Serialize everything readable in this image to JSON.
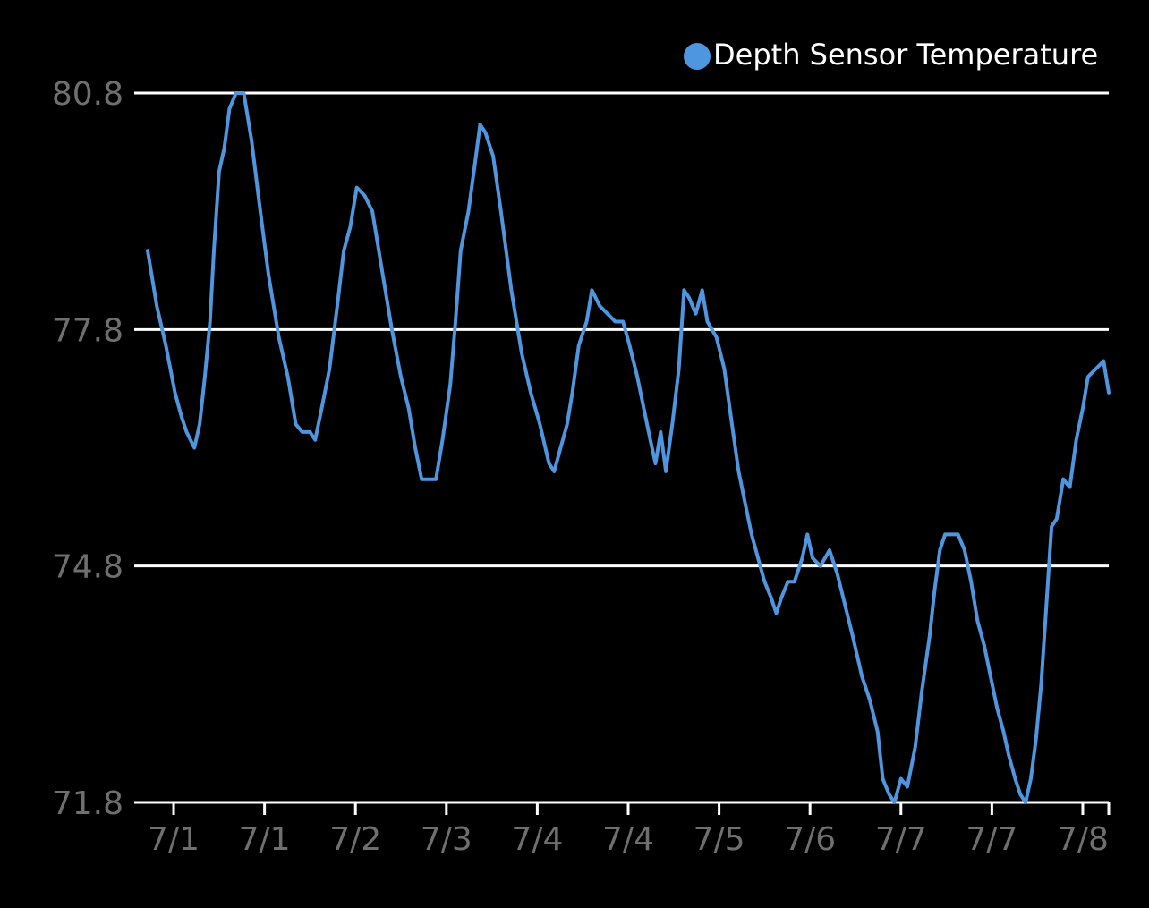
{
  "chart_data": {
    "type": "line",
    "legend": {
      "position": "top-right"
    },
    "colors": {
      "background": "#000000",
      "series": "#4f96e0",
      "grid": "#ffffff",
      "tick_text": "#6f6f6f",
      "legend_text": "#ffffff"
    },
    "grid": true,
    "ylim": [
      71.8,
      80.8
    ],
    "yticks": [
      {
        "value": 80.8,
        "label": "80.8"
      },
      {
        "value": 77.8,
        "label": "77.8"
      },
      {
        "value": 74.8,
        "label": "74.8"
      },
      {
        "value": 71.8,
        "label": "71.8"
      }
    ],
    "x_unit": "days since 7/1 start",
    "xlim": [
      0,
      7.4
    ],
    "xticks": [
      {
        "value": 0.2,
        "label": "7/1"
      },
      {
        "value": 0.9,
        "label": "7/1"
      },
      {
        "value": 1.6,
        "label": "7/2"
      },
      {
        "value": 2.3,
        "label": "7/3"
      },
      {
        "value": 3.0,
        "label": "7/4"
      },
      {
        "value": 3.7,
        "label": "7/4"
      },
      {
        "value": 4.4,
        "label": "7/5"
      },
      {
        "value": 5.1,
        "label": "7/6"
      },
      {
        "value": 5.8,
        "label": "7/7"
      },
      {
        "value": 6.5,
        "label": "7/7"
      },
      {
        "value": 7.2,
        "label": "7/8"
      }
    ],
    "series": [
      {
        "name": "Depth Sensor Temperature",
        "points": [
          [
            0.0,
            78.8
          ],
          [
            0.07,
            78.1
          ],
          [
            0.14,
            77.6
          ],
          [
            0.21,
            77.0
          ],
          [
            0.26,
            76.7
          ],
          [
            0.3,
            76.5
          ],
          [
            0.36,
            76.3
          ],
          [
            0.4,
            76.6
          ],
          [
            0.44,
            77.2
          ],
          [
            0.48,
            77.9
          ],
          [
            0.51,
            78.8
          ],
          [
            0.55,
            79.8
          ],
          [
            0.59,
            80.1
          ],
          [
            0.63,
            80.6
          ],
          [
            0.68,
            80.8
          ],
          [
            0.74,
            80.8
          ],
          [
            0.8,
            80.2
          ],
          [
            0.86,
            79.4
          ],
          [
            0.93,
            78.5
          ],
          [
            1.01,
            77.7
          ],
          [
            1.08,
            77.2
          ],
          [
            1.14,
            76.6
          ],
          [
            1.19,
            76.5
          ],
          [
            1.25,
            76.5
          ],
          [
            1.29,
            76.4
          ],
          [
            1.34,
            76.8
          ],
          [
            1.4,
            77.3
          ],
          [
            1.46,
            78.1
          ],
          [
            1.51,
            78.8
          ],
          [
            1.56,
            79.1
          ],
          [
            1.61,
            79.6
          ],
          [
            1.67,
            79.5
          ],
          [
            1.73,
            79.3
          ],
          [
            1.8,
            78.6
          ],
          [
            1.88,
            77.8
          ],
          [
            1.95,
            77.2
          ],
          [
            2.01,
            76.8
          ],
          [
            2.06,
            76.3
          ],
          [
            2.11,
            75.9
          ],
          [
            2.16,
            75.9
          ],
          [
            2.22,
            75.9
          ],
          [
            2.27,
            76.4
          ],
          [
            2.33,
            77.1
          ],
          [
            2.37,
            77.9
          ],
          [
            2.41,
            78.8
          ],
          [
            2.47,
            79.3
          ],
          [
            2.52,
            79.9
          ],
          [
            2.56,
            80.4
          ],
          [
            2.6,
            80.3
          ],
          [
            2.66,
            80.0
          ],
          [
            2.72,
            79.3
          ],
          [
            2.8,
            78.3
          ],
          [
            2.88,
            77.5
          ],
          [
            2.95,
            77.0
          ],
          [
            3.02,
            76.6
          ],
          [
            3.09,
            76.1
          ],
          [
            3.13,
            76.0
          ],
          [
            3.18,
            76.3
          ],
          [
            3.23,
            76.6
          ],
          [
            3.27,
            77.0
          ],
          [
            3.32,
            77.6
          ],
          [
            3.38,
            77.9
          ],
          [
            3.42,
            78.3
          ],
          [
            3.48,
            78.1
          ],
          [
            3.54,
            78.0
          ],
          [
            3.6,
            77.9
          ],
          [
            3.66,
            77.9
          ],
          [
            3.71,
            77.6
          ],
          [
            3.77,
            77.2
          ],
          [
            3.82,
            76.8
          ],
          [
            3.87,
            76.4
          ],
          [
            3.91,
            76.1
          ],
          [
            3.95,
            76.5
          ],
          [
            3.99,
            76.0
          ],
          [
            4.04,
            76.6
          ],
          [
            4.09,
            77.3
          ],
          [
            4.13,
            78.3
          ],
          [
            4.17,
            78.2
          ],
          [
            4.22,
            78.0
          ],
          [
            4.27,
            78.3
          ],
          [
            4.31,
            77.9
          ],
          [
            4.38,
            77.7
          ],
          [
            4.44,
            77.3
          ],
          [
            4.49,
            76.7
          ],
          [
            4.55,
            76.0
          ],
          [
            4.6,
            75.6
          ],
          [
            4.65,
            75.2
          ],
          [
            4.7,
            74.9
          ],
          [
            4.75,
            74.6
          ],
          [
            4.8,
            74.4
          ],
          [
            4.84,
            74.2
          ],
          [
            4.88,
            74.4
          ],
          [
            4.93,
            74.6
          ],
          [
            4.98,
            74.6
          ],
          [
            5.04,
            74.9
          ],
          [
            5.08,
            75.2
          ],
          [
            5.12,
            74.9
          ],
          [
            5.18,
            74.8
          ],
          [
            5.25,
            75.0
          ],
          [
            5.31,
            74.7
          ],
          [
            5.37,
            74.3
          ],
          [
            5.43,
            73.9
          ],
          [
            5.5,
            73.4
          ],
          [
            5.56,
            73.1
          ],
          [
            5.62,
            72.7
          ],
          [
            5.66,
            72.1
          ],
          [
            5.71,
            71.9
          ],
          [
            5.75,
            71.8
          ],
          [
            5.8,
            72.1
          ],
          [
            5.85,
            72.0
          ],
          [
            5.91,
            72.5
          ],
          [
            5.96,
            73.2
          ],
          [
            6.02,
            73.9
          ],
          [
            6.06,
            74.5
          ],
          [
            6.1,
            75.0
          ],
          [
            6.14,
            75.2
          ],
          [
            6.18,
            75.2
          ],
          [
            6.24,
            75.2
          ],
          [
            6.29,
            75.0
          ],
          [
            6.34,
            74.6
          ],
          [
            6.39,
            74.1
          ],
          [
            6.44,
            73.8
          ],
          [
            6.49,
            73.4
          ],
          [
            6.54,
            73.0
          ],
          [
            6.59,
            72.7
          ],
          [
            6.63,
            72.4
          ],
          [
            6.68,
            72.1
          ],
          [
            6.72,
            71.9
          ],
          [
            6.76,
            71.8
          ],
          [
            6.8,
            72.1
          ],
          [
            6.84,
            72.6
          ],
          [
            6.88,
            73.3
          ],
          [
            6.92,
            74.3
          ],
          [
            6.96,
            75.3
          ],
          [
            7.0,
            75.4
          ],
          [
            7.05,
            75.9
          ],
          [
            7.1,
            75.8
          ],
          [
            7.15,
            76.4
          ],
          [
            7.2,
            76.8
          ],
          [
            7.24,
            77.2
          ],
          [
            7.3,
            77.3
          ],
          [
            7.36,
            77.4
          ],
          [
            7.4,
            77.0
          ]
        ]
      }
    ]
  }
}
